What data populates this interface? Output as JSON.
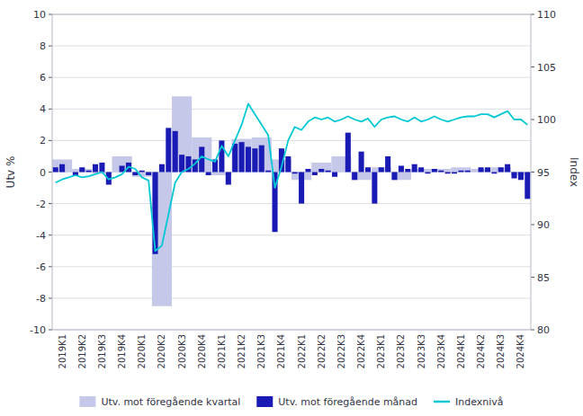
{
  "chart_data": {
    "type": "bar",
    "ylabel": "Utv %",
    "y2label": "Index",
    "ylim": [
      -10,
      10
    ],
    "yticks": [
      -10,
      -8,
      -6,
      -4,
      -2,
      0,
      2,
      4,
      6,
      8,
      10
    ],
    "y2lim": [
      80,
      110
    ],
    "y2ticks": [
      80,
      85,
      90,
      95,
      100,
      105,
      110
    ],
    "grid": true,
    "legend": "bottom",
    "categories": [
      null,
      "2019K1",
      null,
      null,
      "2019K2",
      null,
      null,
      "2019K3",
      null,
      null,
      "2019K4",
      null,
      null,
      "2020K1",
      null,
      null,
      "2020K2",
      null,
      null,
      "2020K3",
      null,
      null,
      "2020K4",
      null,
      null,
      "2021K1",
      null,
      null,
      "2021K2",
      null,
      null,
      "2021K3",
      null,
      null,
      "2021K4",
      null,
      null,
      "2022K1",
      null,
      null,
      "2022K2",
      null,
      null,
      "2022K3",
      null,
      null,
      "2022K4",
      null,
      null,
      "2023K1",
      null,
      null,
      "2023K2",
      null,
      null,
      "2023K3",
      null,
      null,
      "2023K4",
      null,
      null,
      "2024K1",
      null,
      null,
      "2024K2",
      null,
      null,
      "2024K3",
      null,
      null,
      "2024K4",
      null
    ],
    "series": [
      {
        "name": "Utv. mot föregående kvartal",
        "type": "bar",
        "color": "#c5c8e8",
        "values": [
          null,
          0.8,
          null,
          null,
          0.2,
          null,
          null,
          -0.1,
          null,
          null,
          1.0,
          null,
          null,
          -0.3,
          null,
          null,
          -8.5,
          null,
          null,
          4.8,
          null,
          null,
          2.2,
          null,
          null,
          -0.2,
          null,
          null,
          2.1,
          null,
          null,
          2.2,
          null,
          null,
          0.8,
          null,
          null,
          -0.5,
          null,
          null,
          0.6,
          null,
          null,
          1.0,
          null,
          null,
          -0.5,
          null,
          null,
          0.3,
          null,
          null,
          -0.5,
          null,
          null,
          0.2,
          null,
          null,
          0.2,
          null,
          null,
          0.3,
          null,
          null,
          0.2,
          null,
          null,
          0.3,
          null,
          null,
          -0.2,
          null
        ]
      },
      {
        "name": "Utv. mot föregående månad",
        "type": "bar",
        "color": "#1a1ab5",
        "values": [
          0.3,
          0.5,
          0.0,
          -0.2,
          0.3,
          0.1,
          0.5,
          0.6,
          -0.8,
          0.0,
          0.4,
          0.6,
          -0.2,
          0.1,
          -0.2,
          -5.2,
          0.5,
          2.8,
          2.6,
          1.1,
          1.0,
          0.8,
          1.6,
          -0.2,
          0.8,
          2.0,
          -0.8,
          1.8,
          1.9,
          1.6,
          1.5,
          1.7,
          0.1,
          -3.8,
          1.5,
          1.0,
          -0.1,
          -2.0,
          0.2,
          -0.2,
          0.2,
          0.1,
          -0.3,
          0.0,
          2.5,
          -0.5,
          1.3,
          0.3,
          -2.0,
          0.3,
          1.0,
          -0.5,
          0.4,
          0.2,
          0.5,
          0.3,
          -0.1,
          0.2,
          0.1,
          -0.1,
          -0.1,
          0.1,
          0.1,
          0.0,
          0.3,
          0.3,
          -0.1,
          0.3,
          0.5,
          -0.4,
          -0.5,
          -1.7
        ]
      },
      {
        "name": "Indexnivå",
        "type": "line",
        "axis": "y2",
        "color": "#00c8d4",
        "values": [
          94.0,
          94.3,
          94.5,
          94.7,
          94.5,
          94.6,
          94.8,
          95.0,
          94.3,
          94.5,
          94.8,
          95.5,
          95.3,
          94.5,
          94.2,
          87.5,
          88.0,
          91.0,
          94.0,
          95.0,
          95.3,
          95.8,
          96.5,
          96.2,
          96.0,
          97.5,
          96.5,
          98.0,
          99.5,
          101.5,
          100.5,
          99.5,
          98.5,
          93.5,
          95.5,
          98.0,
          99.3,
          99.0,
          99.8,
          100.2,
          100.0,
          100.2,
          99.8,
          100.0,
          100.3,
          100.0,
          99.8,
          100.1,
          99.3,
          100.0,
          100.2,
          100.3,
          100.0,
          99.8,
          100.2,
          99.8,
          100.0,
          100.3,
          100.0,
          99.8,
          100.0,
          100.2,
          100.3,
          100.3,
          100.5,
          100.5,
          100.2,
          100.5,
          100.8,
          100.0,
          100.0,
          99.5
        ]
      }
    ]
  }
}
